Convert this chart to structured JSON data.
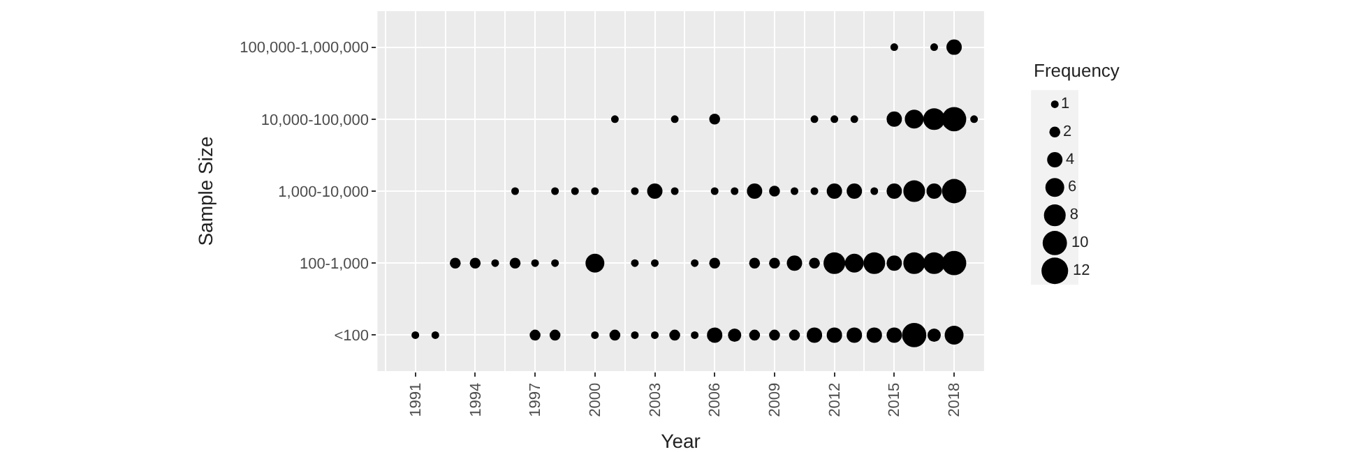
{
  "chart_data": {
    "type": "bubble",
    "orientation": "horizontal",
    "xlabel": "Year",
    "ylabel": "Sample Size",
    "legend_title": "Frequency",
    "categories": [
      "100,000-1,000,000",
      "10,000-100,000",
      "1,000-10,000",
      "100-1,000",
      "<100"
    ],
    "xlim": [
      1989.1,
      2019.5
    ],
    "xticks": [
      1991,
      1994,
      1997,
      2000,
      2003,
      2006,
      2009,
      2012,
      2015,
      2018
    ],
    "size_legend": [
      1,
      2,
      4,
      6,
      8,
      10,
      12
    ],
    "grid": true,
    "marker": "circle",
    "series": [
      {
        "color": "#000000",
        "values": [
          null,
          null,
          null,
          null,
          1991
        ],
        "sizes": [
          null,
          null,
          null,
          null,
          1
        ]
      },
      {
        "color": "#000000",
        "values": [
          null,
          null,
          null,
          null,
          1992
        ],
        "sizes": [
          null,
          null,
          null,
          null,
          1
        ]
      },
      {
        "color": "#000000",
        "values": [
          null,
          null,
          null,
          1993,
          null
        ],
        "sizes": [
          null,
          null,
          null,
          2,
          null
        ]
      },
      {
        "color": "#000000",
        "values": [
          null,
          null,
          null,
          1994,
          null
        ],
        "sizes": [
          null,
          null,
          null,
          2,
          null
        ]
      },
      {
        "color": "#000000",
        "values": [
          null,
          null,
          null,
          1995,
          null
        ],
        "sizes": [
          null,
          null,
          null,
          1,
          null
        ]
      },
      {
        "color": "#000000",
        "values": [
          null,
          null,
          1996,
          1996,
          null
        ],
        "sizes": [
          null,
          null,
          1,
          2,
          null
        ]
      },
      {
        "color": "#000000",
        "values": [
          null,
          null,
          null,
          1997,
          1997
        ],
        "sizes": [
          null,
          null,
          null,
          1,
          2
        ]
      },
      {
        "color": "#000000",
        "values": [
          null,
          null,
          1998,
          1998,
          1998
        ],
        "sizes": [
          null,
          null,
          1,
          1,
          2
        ]
      },
      {
        "color": "#000000",
        "values": [
          null,
          null,
          1999,
          null,
          null
        ],
        "sizes": [
          null,
          null,
          1,
          null,
          null
        ]
      },
      {
        "color": "#000000",
        "values": [
          null,
          null,
          2000,
          2000,
          2000
        ],
        "sizes": [
          null,
          null,
          1,
          6,
          1
        ]
      },
      {
        "color": "#000000",
        "values": [
          null,
          2001,
          null,
          null,
          2001
        ],
        "sizes": [
          null,
          1,
          null,
          null,
          2
        ]
      },
      {
        "color": "#000000",
        "values": [
          null,
          null,
          2002,
          2002,
          2002
        ],
        "sizes": [
          null,
          null,
          1,
          1,
          1
        ]
      },
      {
        "color": "#000000",
        "values": [
          null,
          null,
          2003,
          2003,
          2003
        ],
        "sizes": [
          null,
          null,
          4,
          1,
          1
        ]
      },
      {
        "color": "#000000",
        "values": [
          null,
          2004,
          2004,
          null,
          2004
        ],
        "sizes": [
          null,
          1,
          1,
          null,
          2
        ]
      },
      {
        "color": "#000000",
        "values": [
          null,
          null,
          null,
          2005,
          2005
        ],
        "sizes": [
          null,
          null,
          null,
          1,
          1
        ]
      },
      {
        "color": "#000000",
        "values": [
          null,
          2006,
          2006,
          2006,
          2006
        ],
        "sizes": [
          null,
          2,
          1,
          2,
          4
        ]
      },
      {
        "color": "#000000",
        "values": [
          null,
          null,
          2007,
          null,
          2007
        ],
        "sizes": [
          null,
          null,
          1,
          null,
          3
        ]
      },
      {
        "color": "#000000",
        "values": [
          null,
          null,
          2008,
          2008,
          2008
        ],
        "sizes": [
          null,
          null,
          4,
          2,
          2
        ]
      },
      {
        "color": "#000000",
        "values": [
          null,
          null,
          2009,
          2009,
          2009
        ],
        "sizes": [
          null,
          null,
          2,
          2,
          2
        ]
      },
      {
        "color": "#000000",
        "values": [
          null,
          null,
          2010,
          2010,
          2010
        ],
        "sizes": [
          null,
          null,
          1,
          4,
          2
        ]
      },
      {
        "color": "#000000",
        "values": [
          null,
          2011,
          2011,
          2011,
          2011
        ],
        "sizes": [
          null,
          1,
          1,
          2,
          4
        ]
      },
      {
        "color": "#000000",
        "values": [
          null,
          2012,
          2012,
          2012,
          2012
        ],
        "sizes": [
          null,
          1,
          4,
          8,
          4
        ]
      },
      {
        "color": "#000000",
        "values": [
          null,
          2013,
          2013,
          2013,
          2013
        ],
        "sizes": [
          null,
          1,
          4,
          6,
          4
        ]
      },
      {
        "color": "#000000",
        "values": [
          null,
          null,
          2014,
          2014,
          2014
        ],
        "sizes": [
          null,
          null,
          1,
          8,
          4
        ]
      },
      {
        "color": "#000000",
        "values": [
          2015,
          2015,
          2015,
          2015,
          2015
        ],
        "sizes": [
          1,
          4,
          4,
          4,
          4
        ]
      },
      {
        "color": "#000000",
        "values": [
          null,
          2016,
          2016,
          2016,
          2016
        ],
        "sizes": [
          null,
          6,
          8,
          8,
          10
        ]
      },
      {
        "color": "#000000",
        "values": [
          2017,
          2017,
          2017,
          2017,
          2017
        ],
        "sizes": [
          1,
          8,
          4,
          8,
          3
        ]
      },
      {
        "color": "#000000",
        "values": [
          2018,
          2018,
          2018,
          2018,
          2018
        ],
        "sizes": [
          4,
          10,
          10,
          10,
          6
        ]
      },
      {
        "color": "#000000",
        "values": [
          null,
          2019,
          null,
          null,
          null
        ],
        "sizes": [
          null,
          1,
          null,
          null,
          null
        ]
      }
    ]
  }
}
